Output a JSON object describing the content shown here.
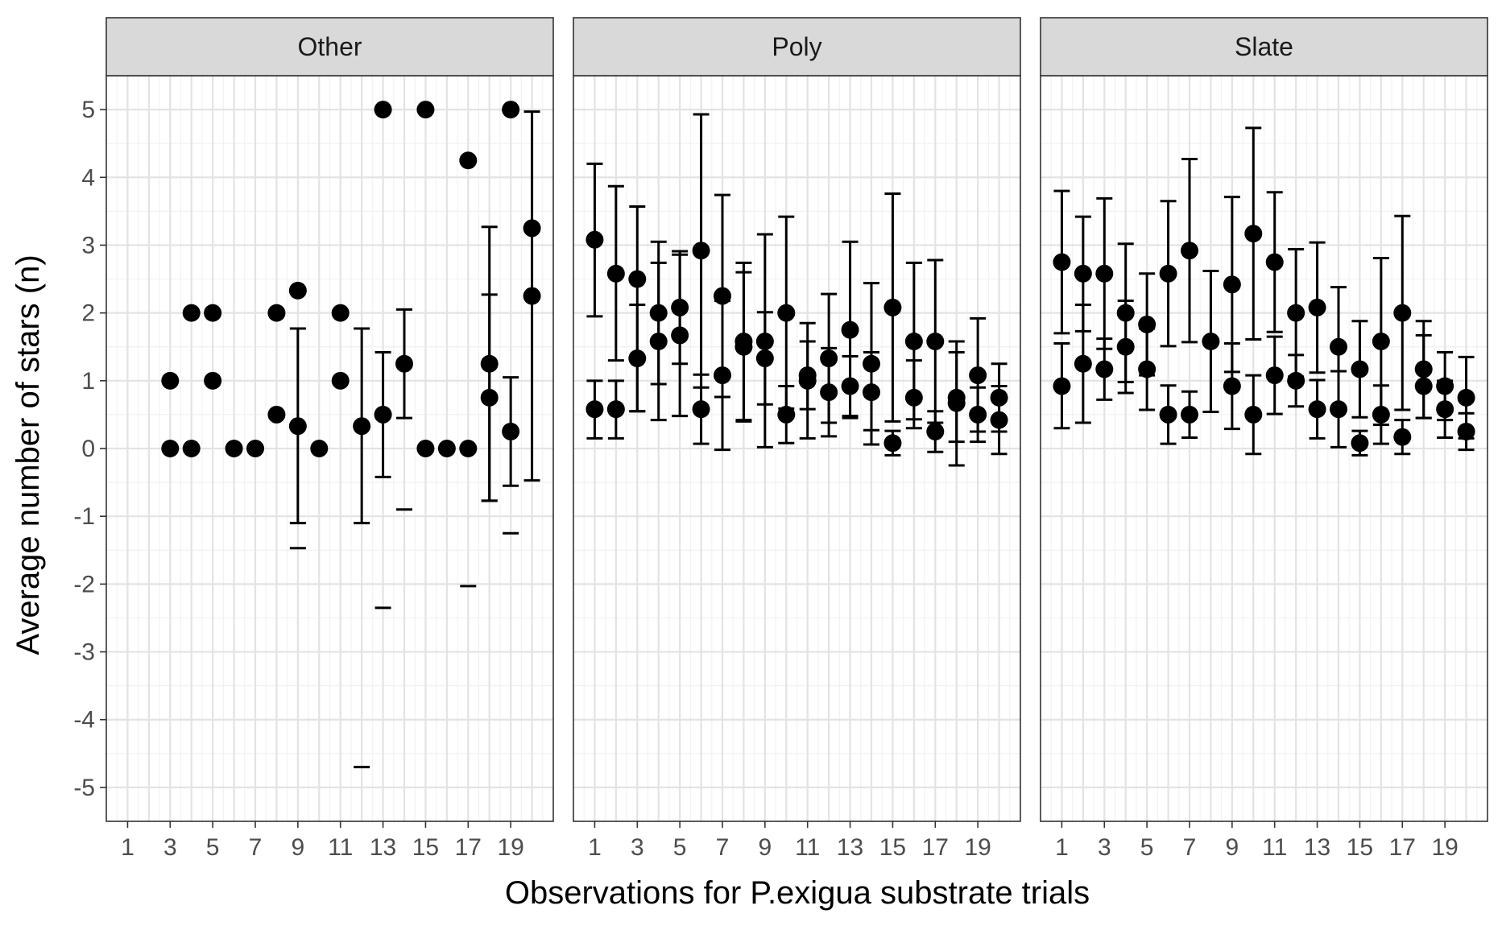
{
  "chart_data": {
    "type": "scatter",
    "xlabel": "Observations for P.exigua substrate trials",
    "ylabel": "Average number of stars (n)",
    "xlim": [
      0,
      21
    ],
    "ylim": [
      -5.5,
      5.5
    ],
    "x_ticks": [
      1,
      3,
      5,
      7,
      9,
      11,
      13,
      15,
      17,
      19
    ],
    "y_ticks": [
      -5,
      -4,
      -3,
      -2,
      -1,
      0,
      1,
      2,
      3,
      4,
      5
    ],
    "grid": true,
    "facets": [
      {
        "name": "Other",
        "points": [
          {
            "x": 3,
            "y": 1
          },
          {
            "x": 3,
            "y": 0
          },
          {
            "x": 4,
            "y": 2
          },
          {
            "x": 4,
            "y": 0
          },
          {
            "x": 5,
            "y": 2
          },
          {
            "x": 5,
            "y": 1
          },
          {
            "x": 6,
            "y": 0
          },
          {
            "x": 7,
            "y": 0
          },
          {
            "x": 8,
            "y": 2
          },
          {
            "x": 8,
            "y": 0.5
          },
          {
            "x": 9,
            "y": 2.33
          },
          {
            "x": 9,
            "y": 0.33
          },
          {
            "x": 10,
            "y": 0
          },
          {
            "x": 11,
            "y": 2
          },
          {
            "x": 11,
            "y": 1
          },
          {
            "x": 12,
            "y": 0.33
          },
          {
            "x": 13,
            "y": 5
          },
          {
            "x": 13,
            "y": 0.5
          },
          {
            "x": 14,
            "y": 1.25
          },
          {
            "x": 15,
            "y": 5
          },
          {
            "x": 15,
            "y": 0
          },
          {
            "x": 16,
            "y": 0
          },
          {
            "x": 17,
            "y": 4.25
          },
          {
            "x": 17,
            "y": 0
          },
          {
            "x": 18,
            "y": 1.25
          },
          {
            "x": 18,
            "y": 0.75
          },
          {
            "x": 19,
            "y": 5
          },
          {
            "x": 19,
            "y": 0.25
          },
          {
            "x": 20,
            "y": 3.25
          },
          {
            "x": 20,
            "y": 2.25
          }
        ],
        "errorbars": [
          {
            "x": 9,
            "low": -1.1,
            "high": 1.77
          },
          {
            "x": 9,
            "low": -1.47,
            "high": null
          },
          {
            "x": 12,
            "low": -1.1,
            "high": 1.77
          },
          {
            "x": 12,
            "low": -4.7,
            "high": null
          },
          {
            "x": 13,
            "low": -0.42,
            "high": 1.42
          },
          {
            "x": 13,
            "low": -2.35,
            "high": null
          },
          {
            "x": 14,
            "low": 0.45,
            "high": 2.05
          },
          {
            "x": 14,
            "low": -0.9,
            "high": null
          },
          {
            "x": 17,
            "low": -2.03,
            "high": null
          },
          {
            "x": 18,
            "low": -0.77,
            "high": 3.27
          },
          {
            "x": 18,
            "low": -0.77,
            "high": 2.27
          },
          {
            "x": 19,
            "low": -0.55,
            "high": 1.05
          },
          {
            "x": 19,
            "low": -1.25,
            "high": null
          },
          {
            "x": 20,
            "low": -0.47,
            "high": 4.97
          }
        ]
      },
      {
        "name": "Poly",
        "points": [
          {
            "x": 1,
            "y": 3.08
          },
          {
            "x": 1,
            "y": 0.58
          },
          {
            "x": 2,
            "y": 2.58
          },
          {
            "x": 2,
            "y": 0.58
          },
          {
            "x": 3,
            "y": 2.5
          },
          {
            "x": 3,
            "y": 1.33
          },
          {
            "x": 4,
            "y": 2.0
          },
          {
            "x": 4,
            "y": 1.58
          },
          {
            "x": 5,
            "y": 2.08
          },
          {
            "x": 5,
            "y": 1.67
          },
          {
            "x": 6,
            "y": 2.92
          },
          {
            "x": 6,
            "y": 0.58
          },
          {
            "x": 7,
            "y": 2.25
          },
          {
            "x": 7,
            "y": 1.08
          },
          {
            "x": 8,
            "y": 1.58
          },
          {
            "x": 8,
            "y": 1.5
          },
          {
            "x": 9,
            "y": 1.58
          },
          {
            "x": 9,
            "y": 1.33
          },
          {
            "x": 10,
            "y": 2.0
          },
          {
            "x": 10,
            "y": 0.5
          },
          {
            "x": 11,
            "y": 1.08
          },
          {
            "x": 11,
            "y": 1.0
          },
          {
            "x": 12,
            "y": 1.33
          },
          {
            "x": 12,
            "y": 0.83
          },
          {
            "x": 13,
            "y": 1.75
          },
          {
            "x": 13,
            "y": 0.92
          },
          {
            "x": 14,
            "y": 1.25
          },
          {
            "x": 14,
            "y": 0.83
          },
          {
            "x": 15,
            "y": 2.08
          },
          {
            "x": 15,
            "y": 0.08
          },
          {
            "x": 16,
            "y": 1.58
          },
          {
            "x": 16,
            "y": 0.75
          },
          {
            "x": 17,
            "y": 1.58
          },
          {
            "x": 17,
            "y": 0.25
          },
          {
            "x": 18,
            "y": 0.75
          },
          {
            "x": 18,
            "y": 0.67
          },
          {
            "x": 19,
            "y": 1.08
          },
          {
            "x": 19,
            "y": 0.5
          },
          {
            "x": 20,
            "y": 0.75
          },
          {
            "x": 20,
            "y": 0.42
          }
        ],
        "errorbars": [
          {
            "x": 1,
            "low": 1.95,
            "high": 4.2
          },
          {
            "x": 1,
            "low": 0.15,
            "high": 1.0
          },
          {
            "x": 2,
            "low": 1.3,
            "high": 3.87
          },
          {
            "x": 2,
            "low": 0.15,
            "high": 1.0
          },
          {
            "x": 3,
            "low": 0.55,
            "high": 3.57
          },
          {
            "x": 3,
            "low": 0.55,
            "high": 2.12
          },
          {
            "x": 4,
            "low": 0.95,
            "high": 3.05
          },
          {
            "x": 4,
            "low": 0.42,
            "high": 2.74
          },
          {
            "x": 5,
            "low": 1.25,
            "high": 2.91
          },
          {
            "x": 5,
            "low": 0.48,
            "high": 2.86
          },
          {
            "x": 6,
            "low": 0.9,
            "high": 4.93
          },
          {
            "x": 6,
            "low": 0.07,
            "high": 1.09
          },
          {
            "x": 7,
            "low": 0.76,
            "high": 3.74
          },
          {
            "x": 7,
            "low": -0.02,
            "high": 2.18
          },
          {
            "x": 8,
            "low": 0.42,
            "high": 2.74
          },
          {
            "x": 8,
            "low": 0.4,
            "high": 2.6
          },
          {
            "x": 9,
            "low": 0.65,
            "high": 2.01
          },
          {
            "x": 9,
            "low": 0.02,
            "high": 3.16
          },
          {
            "x": 10,
            "low": 0.59,
            "high": 3.42
          },
          {
            "x": 10,
            "low": 0.08,
            "high": 0.92
          },
          {
            "x": 11,
            "low": 0.58,
            "high": 1.85
          },
          {
            "x": 11,
            "low": 0.15,
            "high": 1.58
          },
          {
            "x": 12,
            "low": 0.38,
            "high": 2.28
          },
          {
            "x": 12,
            "low": 0.18,
            "high": 1.48
          },
          {
            "x": 13,
            "low": 0.45,
            "high": 3.05
          },
          {
            "x": 13,
            "low": 0.48,
            "high": 1.36
          },
          {
            "x": 14,
            "low": 0.27,
            "high": 2.44
          },
          {
            "x": 14,
            "low": 0.06,
            "high": 1.42
          },
          {
            "x": 15,
            "low": 0.4,
            "high": 3.76
          },
          {
            "x": 15,
            "low": -0.1,
            "high": 0.26
          },
          {
            "x": 16,
            "low": 0.43,
            "high": 2.74
          },
          {
            "x": 16,
            "low": 0.3,
            "high": 1.3
          },
          {
            "x": 17,
            "low": 0.38,
            "high": 2.78
          },
          {
            "x": 17,
            "low": -0.05,
            "high": 0.55
          },
          {
            "x": 18,
            "low": 0.1,
            "high": 1.58
          },
          {
            "x": 18,
            "low": -0.25,
            "high": 1.42
          },
          {
            "x": 19,
            "low": 0.25,
            "high": 1.92
          },
          {
            "x": 19,
            "low": 0.1,
            "high": 0.9
          },
          {
            "x": 20,
            "low": 0.25,
            "high": 1.25
          },
          {
            "x": 20,
            "low": -0.08,
            "high": 0.92
          }
        ]
      },
      {
        "name": "Slate",
        "points": [
          {
            "x": 1,
            "y": 2.75
          },
          {
            "x": 1,
            "y": 0.92
          },
          {
            "x": 2,
            "y": 2.58
          },
          {
            "x": 2,
            "y": 1.25
          },
          {
            "x": 3,
            "y": 2.58
          },
          {
            "x": 3,
            "y": 1.17
          },
          {
            "x": 4,
            "y": 2.0
          },
          {
            "x": 4,
            "y": 1.5
          },
          {
            "x": 5,
            "y": 1.83
          },
          {
            "x": 5,
            "y": 1.17
          },
          {
            "x": 6,
            "y": 2.58
          },
          {
            "x": 6,
            "y": 0.5
          },
          {
            "x": 7,
            "y": 2.92
          },
          {
            "x": 7,
            "y": 0.5
          },
          {
            "x": 8,
            "y": 1.58
          },
          {
            "x": 9,
            "y": 2.42
          },
          {
            "x": 9,
            "y": 0.92
          },
          {
            "x": 10,
            "y": 3.17
          },
          {
            "x": 10,
            "y": 0.5
          },
          {
            "x": 11,
            "y": 2.75
          },
          {
            "x": 11,
            "y": 1.08
          },
          {
            "x": 12,
            "y": 2.0
          },
          {
            "x": 12,
            "y": 1.0
          },
          {
            "x": 13,
            "y": 2.08
          },
          {
            "x": 13,
            "y": 0.58
          },
          {
            "x": 14,
            "y": 1.5
          },
          {
            "x": 14,
            "y": 0.58
          },
          {
            "x": 15,
            "y": 1.17
          },
          {
            "x": 15,
            "y": 0.08
          },
          {
            "x": 16,
            "y": 1.58
          },
          {
            "x": 16,
            "y": 0.5
          },
          {
            "x": 17,
            "y": 2.0
          },
          {
            "x": 17,
            "y": 0.17
          },
          {
            "x": 18,
            "y": 1.17
          },
          {
            "x": 18,
            "y": 0.92
          },
          {
            "x": 19,
            "y": 0.92
          },
          {
            "x": 19,
            "y": 0.58
          },
          {
            "x": 20,
            "y": 0.75
          },
          {
            "x": 20,
            "y": 0.25
          }
        ],
        "errorbars": [
          {
            "x": 1,
            "low": 1.7,
            "high": 3.8
          },
          {
            "x": 1,
            "low": 0.3,
            "high": 1.55
          },
          {
            "x": 2,
            "low": 1.73,
            "high": 3.42
          },
          {
            "x": 2,
            "low": 0.38,
            "high": 2.12
          },
          {
            "x": 3,
            "low": 1.47,
            "high": 3.69
          },
          {
            "x": 3,
            "low": 0.72,
            "high": 1.62
          },
          {
            "x": 4,
            "low": 0.98,
            "high": 3.02
          },
          {
            "x": 4,
            "low": 0.82,
            "high": 2.18
          },
          {
            "x": 5,
            "low": 1.08,
            "high": 2.58
          },
          {
            "x": 5,
            "low": 0.57,
            "high": 1.77
          },
          {
            "x": 6,
            "low": 1.51,
            "high": 3.65
          },
          {
            "x": 6,
            "low": 0.07,
            "high": 0.93
          },
          {
            "x": 7,
            "low": 1.57,
            "high": 4.27
          },
          {
            "x": 7,
            "low": 0.16,
            "high": 0.84
          },
          {
            "x": 8,
            "low": 0.54,
            "high": 2.62
          },
          {
            "x": 9,
            "low": 1.13,
            "high": 3.71
          },
          {
            "x": 9,
            "low": 0.29,
            "high": 1.55
          },
          {
            "x": 10,
            "low": 1.61,
            "high": 4.73
          },
          {
            "x": 10,
            "low": -0.08,
            "high": 1.08
          },
          {
            "x": 11,
            "low": 1.72,
            "high": 3.78
          },
          {
            "x": 11,
            "low": 0.51,
            "high": 1.65
          },
          {
            "x": 12,
            "low": 1.06,
            "high": 2.94
          },
          {
            "x": 12,
            "low": 0.62,
            "high": 1.38
          },
          {
            "x": 13,
            "low": 1.12,
            "high": 3.04
          },
          {
            "x": 13,
            "low": 0.15,
            "high": 1.01
          },
          {
            "x": 14,
            "low": 0.62,
            "high": 2.38
          },
          {
            "x": 14,
            "low": 0.02,
            "high": 1.14
          },
          {
            "x": 15,
            "low": 0.46,
            "high": 1.88
          },
          {
            "x": 15,
            "low": -0.1,
            "high": 0.26
          },
          {
            "x": 16,
            "low": 0.35,
            "high": 2.81
          },
          {
            "x": 16,
            "low": 0.07,
            "high": 0.93
          },
          {
            "x": 17,
            "low": 0.57,
            "high": 3.43
          },
          {
            "x": 17,
            "low": -0.08,
            "high": 0.42
          },
          {
            "x": 18,
            "low": 0.45,
            "high": 1.88
          },
          {
            "x": 18,
            "low": 0.45,
            "high": 1.67
          },
          {
            "x": 19,
            "low": 0.42,
            "high": 1.42
          },
          {
            "x": 19,
            "low": 0.16,
            "high": 1.0
          },
          {
            "x": 20,
            "low": 0.15,
            "high": 1.35
          },
          {
            "x": 20,
            "low": -0.02,
            "high": 0.52
          }
        ]
      }
    ]
  }
}
